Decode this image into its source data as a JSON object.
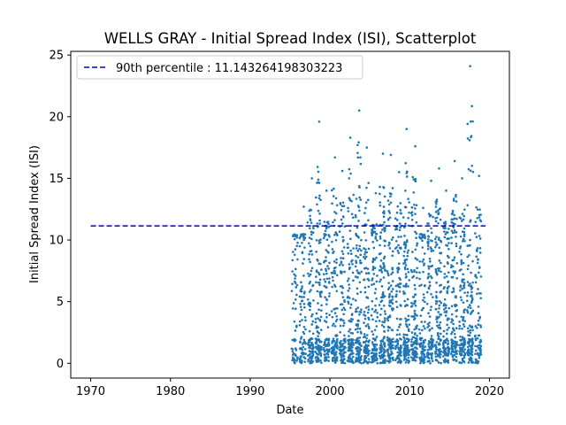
{
  "chart_data": {
    "type": "scatter",
    "title": "WELLS GRAY - Initial Spread Index (ISI), Scatterplot",
    "xlabel": "Date",
    "ylabel": "Initial Spread Index (ISI)",
    "xlim": [
      1967.5,
      2022.5
    ],
    "ylim": [
      -1.2,
      25.3
    ],
    "x_ticks": [
      1970,
      1980,
      1990,
      2000,
      2010,
      2020
    ],
    "y_ticks": [
      0,
      5,
      10,
      15,
      20,
      25
    ],
    "grid": false,
    "legend_position": "top-left",
    "series": [
      {
        "name": "ISI",
        "color": "#1f77b4",
        "seasons": [
          1995.6,
          1996.6,
          1997.6,
          1998.6,
          1999.6,
          2000.6,
          2001.6,
          2002.6,
          2003.6,
          2004.6,
          2005.6,
          2006.6,
          2007.6,
          2008.6,
          2009.6,
          2010.6,
          2011.6,
          2012.6,
          2013.6,
          2014.6,
          2015.6,
          2016.6,
          2017.6,
          2018.6
        ],
        "season_max": [
          8.8,
          12.7,
          15.0,
          19.6,
          14.0,
          16.7,
          15.6,
          18.3,
          20.5,
          17.5,
          13.8,
          17.0,
          16.9,
          15.5,
          19.0,
          17.6,
          12.6,
          14.8,
          15.8,
          14.0,
          16.4,
          15.0,
          24.1,
          15.2
        ],
        "season_count": [
          60,
          90,
          110,
          120,
          100,
          110,
          110,
          120,
          130,
          110,
          110,
          130,
          120,
          110,
          130,
          120,
          100,
          110,
          120,
          110,
          120,
          110,
          130,
          90
        ]
      }
    ],
    "reference_lines": [
      {
        "label": "90th percentile : 11.143264198303223",
        "y": 11.143264198303223,
        "x_range": [
          1970,
          2019.5
        ],
        "color": "#0000cc",
        "style": "dashed"
      }
    ]
  }
}
